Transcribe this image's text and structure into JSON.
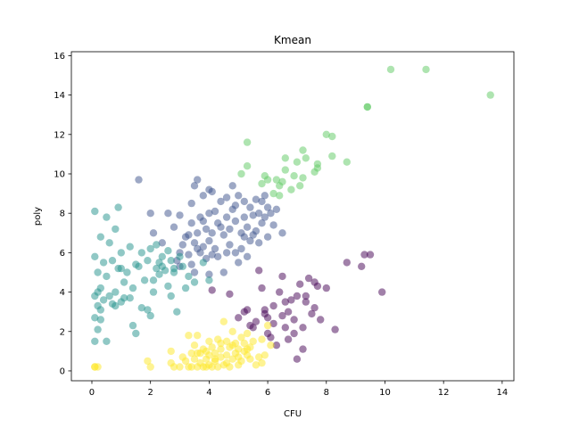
{
  "chart_data": {
    "type": "scatter",
    "title": "Kmean",
    "xlabel": "CFU",
    "ylabel": "poly",
    "xlim": [
      -0.7,
      14.4
    ],
    "ylim": [
      -0.5,
      16.2
    ],
    "xticks": [
      0,
      2,
      4,
      6,
      8,
      10,
      12,
      14
    ],
    "yticks": [
      0,
      2,
      4,
      6,
      8,
      10,
      12,
      14,
      16
    ],
    "grid": false,
    "legend": "none",
    "alpha": 0.5,
    "series": [
      {
        "color": "#440154",
        "points": [
          [
            4.1,
            4.1
          ],
          [
            4.7,
            3.9
          ],
          [
            5.0,
            2.7
          ],
          [
            5.2,
            3.0
          ],
          [
            5.3,
            3.1
          ],
          [
            5.5,
            2.2
          ],
          [
            5.6,
            2.5
          ],
          [
            5.7,
            5.1
          ],
          [
            5.8,
            4.2
          ],
          [
            5.9,
            3.1
          ],
          [
            6.0,
            1.9
          ],
          [
            6.0,
            2.7
          ],
          [
            6.1,
            1.7
          ],
          [
            6.2,
            2.4
          ],
          [
            6.3,
            1.3
          ],
          [
            6.4,
            4.0
          ],
          [
            6.5,
            2.8
          ],
          [
            6.5,
            4.8
          ],
          [
            6.6,
            3.5
          ],
          [
            6.7,
            1.6
          ],
          [
            6.7,
            3.0
          ],
          [
            6.8,
            3.6
          ],
          [
            6.9,
            2.6
          ],
          [
            7.0,
            3.8
          ],
          [
            7.0,
            0.6
          ],
          [
            7.1,
            4.4
          ],
          [
            7.2,
            1.1
          ],
          [
            7.2,
            2.2
          ],
          [
            7.3,
            3.5
          ],
          [
            7.4,
            4.7
          ],
          [
            7.5,
            2.9
          ],
          [
            7.6,
            3.2
          ],
          [
            7.7,
            4.3
          ],
          [
            7.8,
            2.6
          ],
          [
            8.0,
            4.2
          ],
          [
            8.3,
            2.1
          ],
          [
            8.7,
            5.5
          ],
          [
            9.2,
            5.3
          ],
          [
            9.3,
            5.9
          ],
          [
            9.5,
            5.9
          ],
          [
            9.9,
            4.0
          ],
          [
            5.4,
            2.3
          ],
          [
            6.2,
            3.3
          ],
          [
            6.9,
            1.9
          ],
          [
            7.6,
            4.5
          ],
          [
            5.9,
            2.9
          ],
          [
            6.6,
            2.2
          ],
          [
            7.3,
            3.8
          ]
        ]
      },
      {
        "color": "#3b528b",
        "points": [
          [
            1.6,
            9.7
          ],
          [
            2.0,
            8.0
          ],
          [
            2.1,
            7.0
          ],
          [
            2.4,
            6.5
          ],
          [
            2.6,
            8.0
          ],
          [
            2.8,
            7.3
          ],
          [
            3.0,
            7.9
          ],
          [
            3.0,
            6.0
          ],
          [
            3.2,
            6.8
          ],
          [
            3.3,
            5.9
          ],
          [
            3.4,
            7.5
          ],
          [
            3.4,
            8.5
          ],
          [
            3.5,
            9.4
          ],
          [
            3.5,
            6.5
          ],
          [
            3.6,
            7.0
          ],
          [
            3.6,
            9.7
          ],
          [
            3.7,
            6.0
          ],
          [
            3.7,
            7.8
          ],
          [
            3.8,
            8.9
          ],
          [
            3.8,
            6.3
          ],
          [
            3.9,
            7.2
          ],
          [
            3.9,
            5.7
          ],
          [
            4.0,
            9.2
          ],
          [
            4.0,
            8.0
          ],
          [
            4.0,
            6.6
          ],
          [
            4.0,
            4.9
          ],
          [
            4.1,
            7.0
          ],
          [
            4.1,
            9.1
          ],
          [
            4.2,
            8.1
          ],
          [
            4.2,
            6.2
          ],
          [
            4.3,
            7.5
          ],
          [
            4.3,
            5.8
          ],
          [
            4.4,
            8.6
          ],
          [
            4.5,
            6.9
          ],
          [
            4.5,
            5.0
          ],
          [
            4.6,
            7.8
          ],
          [
            4.6,
            8.8
          ],
          [
            4.7,
            6.4
          ],
          [
            4.7,
            7.2
          ],
          [
            4.8,
            9.4
          ],
          [
            4.8,
            8.2
          ],
          [
            4.9,
            6.0
          ],
          [
            4.9,
            7.6
          ],
          [
            5.0,
            5.5
          ],
          [
            5.0,
            8.9
          ],
          [
            5.1,
            7.0
          ],
          [
            5.1,
            6.2
          ],
          [
            5.2,
            8.6
          ],
          [
            5.2,
            7.8
          ],
          [
            5.3,
            5.8
          ],
          [
            5.3,
            7.3
          ],
          [
            5.4,
            6.6
          ],
          [
            5.4,
            8.3
          ],
          [
            5.5,
            7.9
          ],
          [
            5.5,
            6.9
          ],
          [
            5.6,
            8.7
          ],
          [
            5.7,
            8.0
          ],
          [
            5.7,
            6.5
          ],
          [
            5.8,
            7.5
          ],
          [
            5.8,
            8.6
          ],
          [
            5.9,
            7.8
          ],
          [
            6.0,
            8.3
          ],
          [
            6.0,
            6.8
          ],
          [
            6.1,
            8.0
          ],
          [
            6.2,
            7.4
          ],
          [
            6.3,
            8.2
          ],
          [
            6.5,
            7.0
          ],
          [
            3.1,
            6.4
          ],
          [
            3.3,
            6.9
          ],
          [
            3.6,
            6.2
          ],
          [
            3.8,
            7.6
          ],
          [
            4.1,
            5.9
          ],
          [
            4.4,
            7.3
          ],
          [
            4.6,
            6.0
          ],
          [
            4.9,
            8.4
          ],
          [
            5.2,
            6.8
          ],
          [
            5.6,
            7.1
          ],
          [
            5.9,
            8.9
          ],
          [
            2.9,
            5.6
          ],
          [
            3.0,
            5.3
          ],
          [
            3.4,
            5.4
          ],
          [
            3.5,
            5.0
          ]
        ]
      },
      {
        "color": "#21918c",
        "points": [
          [
            0.1,
            8.1
          ],
          [
            0.1,
            5.8
          ],
          [
            0.1,
            3.8
          ],
          [
            0.1,
            2.7
          ],
          [
            0.1,
            1.5
          ],
          [
            0.2,
            5.0
          ],
          [
            0.2,
            3.3
          ],
          [
            0.2,
            2.1
          ],
          [
            0.3,
            6.8
          ],
          [
            0.3,
            4.2
          ],
          [
            0.3,
            2.6
          ],
          [
            0.4,
            5.5
          ],
          [
            0.4,
            3.6
          ],
          [
            0.5,
            7.8
          ],
          [
            0.5,
            4.8
          ],
          [
            0.5,
            1.5
          ],
          [
            0.6,
            6.5
          ],
          [
            0.7,
            5.6
          ],
          [
            0.7,
            3.4
          ],
          [
            0.8,
            7.2
          ],
          [
            0.8,
            4.0
          ],
          [
            0.9,
            8.3
          ],
          [
            0.9,
            5.2
          ],
          [
            1.0,
            6.0
          ],
          [
            1.0,
            3.5
          ],
          [
            1.1,
            4.5
          ],
          [
            1.2,
            5.0
          ],
          [
            1.3,
            6.3
          ],
          [
            1.4,
            4.2
          ],
          [
            1.5,
            1.9
          ],
          [
            1.6,
            5.3
          ],
          [
            1.7,
            3.2
          ],
          [
            1.7,
            6.0
          ],
          [
            1.8,
            4.6
          ],
          [
            1.9,
            5.6
          ],
          [
            2.0,
            6.2
          ],
          [
            2.0,
            2.8
          ],
          [
            2.1,
            4.0
          ],
          [
            2.2,
            5.2
          ],
          [
            2.2,
            6.4
          ],
          [
            2.3,
            4.9
          ],
          [
            2.4,
            5.8
          ],
          [
            2.5,
            5.1
          ],
          [
            2.6,
            6.1
          ],
          [
            2.7,
            3.8
          ],
          [
            2.7,
            5.6
          ],
          [
            2.8,
            5.0
          ],
          [
            2.9,
            3.0
          ],
          [
            3.0,
            5.8
          ],
          [
            3.1,
            5.3
          ],
          [
            3.2,
            4.2
          ],
          [
            3.3,
            4.8
          ],
          [
            3.5,
            4.5
          ],
          [
            3.8,
            5.5
          ],
          [
            4.0,
            4.6
          ],
          [
            1.5,
            5.4
          ],
          [
            1.9,
            3.1
          ],
          [
            2.3,
            5.5
          ],
          [
            2.6,
            4.3
          ],
          [
            1.1,
            3.7
          ],
          [
            0.6,
            3.8
          ],
          [
            1.4,
            2.3
          ],
          [
            0.2,
            4.0
          ],
          [
            0.3,
            3.1
          ],
          [
            0.8,
            3.3
          ],
          [
            1.0,
            5.2
          ],
          [
            1.3,
            3.7
          ],
          [
            2.4,
            5.3
          ],
          [
            2.8,
            5.2
          ],
          [
            2.1,
            4.6
          ]
        ]
      },
      {
        "color": "#5ec962",
        "points": [
          [
            5.1,
            10.0
          ],
          [
            5.3,
            10.4
          ],
          [
            5.3,
            11.6
          ],
          [
            5.8,
            9.5
          ],
          [
            5.9,
            9.9
          ],
          [
            6.0,
            9.7
          ],
          [
            6.2,
            9.0
          ],
          [
            6.3,
            9.7
          ],
          [
            6.4,
            8.9
          ],
          [
            6.4,
            9.4
          ],
          [
            6.5,
            9.6
          ],
          [
            6.6,
            10.2
          ],
          [
            6.6,
            10.8
          ],
          [
            6.8,
            9.2
          ],
          [
            6.9,
            9.9
          ],
          [
            7.0,
            10.6
          ],
          [
            7.1,
            9.4
          ],
          [
            7.2,
            11.2
          ],
          [
            7.2,
            9.8
          ],
          [
            7.3,
            10.8
          ],
          [
            7.6,
            10.1
          ],
          [
            7.7,
            10.5
          ],
          [
            7.7,
            10.3
          ],
          [
            8.0,
            12.0
          ],
          [
            8.2,
            11.9
          ],
          [
            8.2,
            10.9
          ],
          [
            8.7,
            10.6
          ],
          [
            9.4,
            13.4
          ],
          [
            9.4,
            13.4
          ],
          [
            10.2,
            15.3
          ],
          [
            11.4,
            15.3
          ],
          [
            13.6,
            14.0
          ]
        ]
      },
      {
        "color": "#fde725",
        "points": [
          [
            0.1,
            0.2
          ],
          [
            0.1,
            0.2
          ],
          [
            0.2,
            0.2
          ],
          [
            1.9,
            0.5
          ],
          [
            2.0,
            0.2
          ],
          [
            2.7,
            0.4
          ],
          [
            2.7,
            1.0
          ],
          [
            2.8,
            0.2
          ],
          [
            3.0,
            0.2
          ],
          [
            3.1,
            0.7
          ],
          [
            3.2,
            0.5
          ],
          [
            3.3,
            1.8
          ],
          [
            3.3,
            0.2
          ],
          [
            3.4,
            0.9
          ],
          [
            3.4,
            0.2
          ],
          [
            3.5,
            0.6
          ],
          [
            3.5,
            1.3
          ],
          [
            3.6,
            0.2
          ],
          [
            3.6,
            1.8
          ],
          [
            3.7,
            0.4
          ],
          [
            3.7,
            0.9
          ],
          [
            3.8,
            0.2
          ],
          [
            3.8,
            1.1
          ],
          [
            3.9,
            0.6
          ],
          [
            3.9,
            0.2
          ],
          [
            4.0,
            1.5
          ],
          [
            4.0,
            0.3
          ],
          [
            4.0,
            0.8
          ],
          [
            4.1,
            0.2
          ],
          [
            4.1,
            1.2
          ],
          [
            4.2,
            0.5
          ],
          [
            4.2,
            0.9
          ],
          [
            4.3,
            1.6
          ],
          [
            4.3,
            0.2
          ],
          [
            4.4,
            0.7
          ],
          [
            4.4,
            1.1
          ],
          [
            4.5,
            2.5
          ],
          [
            4.5,
            0.3
          ],
          [
            4.6,
            1.5
          ],
          [
            4.6,
            0.8
          ],
          [
            4.7,
            0.2
          ],
          [
            4.7,
            1.2
          ],
          [
            4.8,
            0.6
          ],
          [
            4.8,
            2.0
          ],
          [
            4.9,
            0.9
          ],
          [
            4.9,
            1.4
          ],
          [
            5.0,
            0.3
          ],
          [
            5.0,
            1.1
          ],
          [
            5.1,
            1.7
          ],
          [
            5.1,
            0.5
          ],
          [
            5.2,
            1.0
          ],
          [
            5.2,
            1.4
          ],
          [
            5.3,
            0.8
          ],
          [
            5.3,
            1.9
          ],
          [
            5.4,
            1.2
          ],
          [
            5.4,
            0.6
          ],
          [
            5.5,
            1.5
          ],
          [
            5.6,
            0.3
          ],
          [
            5.7,
            0.7
          ],
          [
            5.8,
            1.6
          ],
          [
            5.8,
            0.4
          ],
          [
            5.9,
            0.8
          ],
          [
            6.0,
            2.3
          ],
          [
            6.1,
            1.3
          ],
          [
            4.2,
            0.6
          ],
          [
            4.6,
            0.4
          ],
          [
            3.9,
            1.0
          ],
          [
            4.4,
            1.4
          ],
          [
            5.0,
            0.7
          ],
          [
            3.6,
            0.9
          ],
          [
            4.8,
            1.3
          ],
          [
            5.3,
            1.1
          ]
        ]
      }
    ]
  }
}
